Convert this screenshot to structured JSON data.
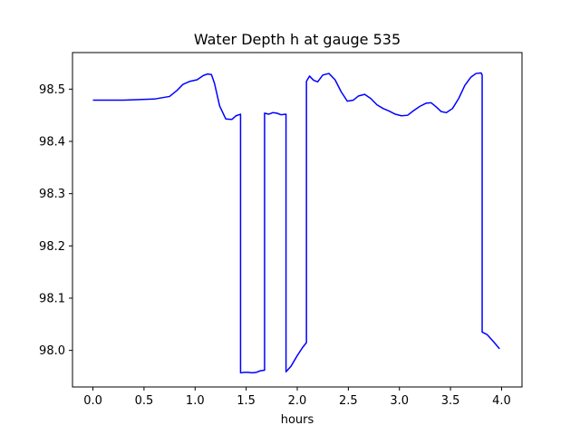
{
  "chart_data": {
    "type": "line",
    "title": "Water Depth h at gauge 535",
    "xlabel": "hours",
    "ylabel": "",
    "xlim": [
      -0.2,
      4.2
    ],
    "ylim": [
      97.93,
      98.57
    ],
    "xticks": [
      0.0,
      0.5,
      1.0,
      1.5,
      2.0,
      2.5,
      3.0,
      3.5,
      4.0
    ],
    "xtick_labels": [
      "0.0",
      "0.5",
      "1.0",
      "1.5",
      "2.0",
      "2.5",
      "3.0",
      "3.5",
      "4.0"
    ],
    "yticks": [
      98.0,
      98.1,
      98.2,
      98.3,
      98.4,
      98.5
    ],
    "ytick_labels": [
      "98.0",
      "98.1",
      "98.2",
      "98.3",
      "98.4",
      "98.5"
    ],
    "grid": false,
    "series": [
      {
        "name": "",
        "color": "#0000ff",
        "x": [
          0.0,
          0.3,
          0.6,
          0.75,
          0.82,
          0.88,
          0.95,
          1.02,
          1.08,
          1.12,
          1.16,
          1.19,
          1.24,
          1.3,
          1.36,
          1.4,
          1.445,
          1.445,
          1.48,
          1.52,
          1.56,
          1.6,
          1.64,
          1.68,
          1.68,
          1.72,
          1.76,
          1.8,
          1.84,
          1.89,
          1.89,
          1.94,
          2.0,
          2.05,
          2.09,
          2.09,
          2.12,
          2.16,
          2.2,
          2.25,
          2.31,
          2.37,
          2.43,
          2.49,
          2.55,
          2.6,
          2.66,
          2.72,
          2.78,
          2.84,
          2.9,
          2.96,
          3.02,
          3.08,
          3.14,
          3.2,
          3.26,
          3.31,
          3.36,
          3.41,
          3.46,
          3.52,
          3.58,
          3.64,
          3.7,
          3.75,
          3.8,
          3.81,
          3.81,
          3.86,
          3.92,
          3.98
        ],
        "values": [
          98.479,
          98.479,
          98.481,
          98.486,
          98.497,
          98.509,
          98.515,
          98.518,
          98.526,
          98.529,
          98.528,
          98.511,
          98.468,
          98.443,
          98.442,
          98.449,
          98.452,
          97.957,
          97.958,
          97.958,
          97.957,
          97.958,
          97.961,
          97.962,
          98.454,
          98.452,
          98.455,
          98.454,
          98.451,
          98.452,
          97.959,
          97.97,
          97.99,
          98.005,
          98.015,
          98.515,
          98.525,
          98.517,
          98.514,
          98.527,
          98.53,
          98.518,
          98.495,
          98.477,
          98.479,
          98.487,
          98.49,
          98.482,
          98.47,
          98.463,
          98.458,
          98.452,
          98.449,
          98.45,
          98.459,
          98.467,
          98.473,
          98.474,
          98.466,
          98.457,
          98.455,
          98.463,
          98.482,
          98.507,
          98.523,
          98.53,
          98.531,
          98.527,
          98.035,
          98.03,
          98.017,
          98.003
        ]
      }
    ]
  }
}
